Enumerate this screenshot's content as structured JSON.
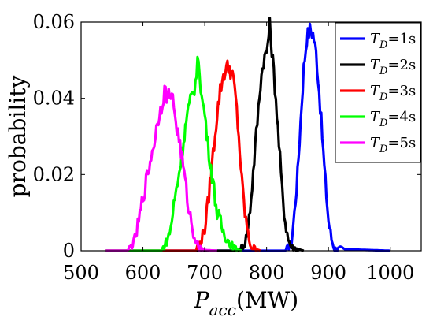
{
  "chart_data": {
    "type": "line",
    "title": "",
    "xlabel_main": "P",
    "xlabel_sub": "acc",
    "xlabel_unit": "(MW)",
    "ylabel": "probability",
    "xlim": [
      500,
      1050
    ],
    "ylim": [
      0,
      0.06
    ],
    "xticks": [
      500,
      600,
      700,
      800,
      900,
      1000
    ],
    "yticks": [
      0,
      0.02,
      0.04,
      0.06
    ],
    "xtick_labels": [
      "500",
      "600",
      "700",
      "800",
      "900",
      "1000"
    ],
    "ytick_labels": [
      "0",
      "0.02",
      "0.04",
      "0.06"
    ],
    "grid": false,
    "legend_position": "top-right",
    "series": [
      {
        "name_var": "T",
        "name_sub": "D",
        "name_rest": "=1s",
        "color": "#0000ff",
        "x": [
          540,
          830,
          840,
          845,
          850,
          855,
          860,
          865,
          870,
          875,
          880,
          885,
          890,
          895,
          900,
          905,
          910,
          1000
        ],
        "y": [
          0,
          0,
          0.002,
          0.01,
          0.02,
          0.034,
          0.048,
          0.056,
          0.058,
          0.057,
          0.052,
          0.042,
          0.03,
          0.018,
          0.008,
          0.003,
          0.0005,
          0
        ]
      },
      {
        "name_var": "T",
        "name_sub": "D",
        "name_rest": "=2s",
        "color": "#000000",
        "x": [
          540,
          755,
          765,
          770,
          775,
          780,
          785,
          790,
          795,
          800,
          805,
          810,
          815,
          820,
          825,
          830,
          835,
          840,
          860
        ],
        "y": [
          0,
          0,
          0.002,
          0.006,
          0.014,
          0.024,
          0.034,
          0.044,
          0.05,
          0.052,
          0.059,
          0.05,
          0.04,
          0.028,
          0.016,
          0.008,
          0.003,
          0.001,
          0
        ]
      },
      {
        "name_var": "T",
        "name_sub": "D",
        "name_rest": "=3s",
        "color": "#ff0000",
        "x": [
          540,
          685,
          695,
          700,
          705,
          710,
          715,
          720,
          725,
          730,
          735,
          740,
          745,
          750,
          755,
          760,
          765,
          770,
          775,
          790
        ],
        "y": [
          0,
          0,
          0.003,
          0.006,
          0.012,
          0.02,
          0.028,
          0.036,
          0.042,
          0.046,
          0.048,
          0.048,
          0.046,
          0.04,
          0.03,
          0.018,
          0.01,
          0.004,
          0.001,
          0
        ]
      },
      {
        "name_var": "T",
        "name_sub": "D",
        "name_rest": "=4s",
        "color": "#00ff00",
        "x": [
          540,
          630,
          640,
          645,
          650,
          660,
          670,
          675,
          680,
          685,
          690,
          695,
          700,
          705,
          710,
          715,
          720,
          730,
          740,
          750,
          760
        ],
        "y": [
          0,
          0,
          0.003,
          0.006,
          0.012,
          0.022,
          0.034,
          0.038,
          0.041,
          0.044,
          0.051,
          0.04,
          0.036,
          0.028,
          0.022,
          0.016,
          0.01,
          0.005,
          0.002,
          0.0005,
          0
        ]
      },
      {
        "name_var": "T",
        "name_sub": "D",
        "name_rest": "=5s",
        "color": "#ff00ff",
        "x": [
          540,
          575,
          585,
          590,
          595,
          600,
          605,
          610,
          615,
          620,
          625,
          630,
          635,
          640,
          645,
          650,
          655,
          660,
          665,
          670,
          675,
          680,
          685,
          690,
          700,
          720
        ],
        "y": [
          0,
          0,
          0.002,
          0.005,
          0.009,
          0.014,
          0.018,
          0.022,
          0.026,
          0.03,
          0.035,
          0.038,
          0.042,
          0.04,
          0.042,
          0.038,
          0.032,
          0.028,
          0.022,
          0.016,
          0.01,
          0.006,
          0.003,
          0.001,
          0.0002,
          0
        ]
      }
    ]
  }
}
